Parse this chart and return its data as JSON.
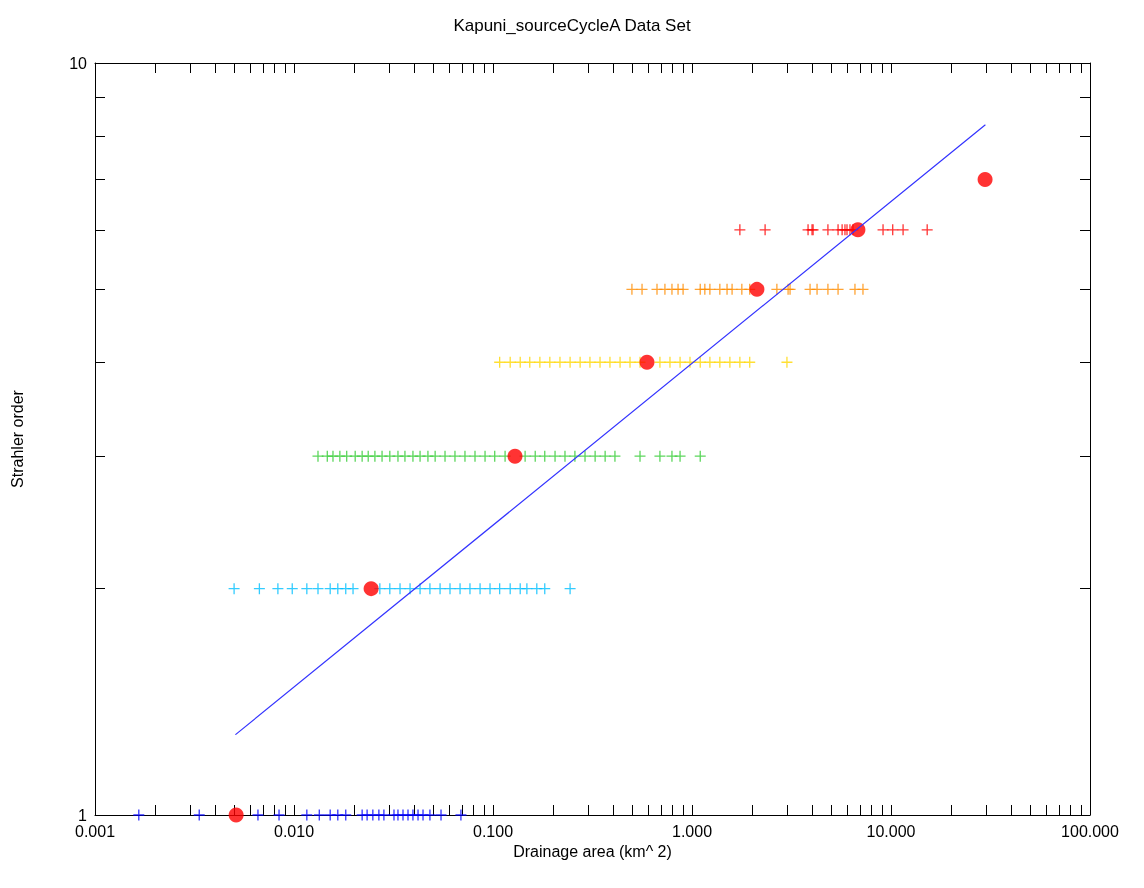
{
  "chart_data": {
    "type": "scatter",
    "title": "Kapuni_sourceCycleA Data Set",
    "xlabel": "Drainage area (km^ 2)",
    "ylabel": "Strahler order",
    "log": "xy",
    "marker": "cross",
    "grid": false,
    "xlim": [
      0.001,
      100
    ],
    "ylim": [
      1,
      10
    ],
    "xticks": [
      {
        "value": 0.001,
        "label": "0.001"
      },
      {
        "value": 0.002,
        "label": null
      },
      {
        "value": 0.003,
        "label": null
      },
      {
        "value": 0.004,
        "label": null
      },
      {
        "value": 0.005,
        "label": null
      },
      {
        "value": 0.006,
        "label": null
      },
      {
        "value": 0.007,
        "label": null
      },
      {
        "value": 0.008,
        "label": null
      },
      {
        "value": 0.009,
        "label": null
      },
      {
        "value": 0.01,
        "label": "0.010"
      },
      {
        "value": 0.02,
        "label": null
      },
      {
        "value": 0.03,
        "label": null
      },
      {
        "value": 0.04,
        "label": null
      },
      {
        "value": 0.05,
        "label": null
      },
      {
        "value": 0.06,
        "label": null
      },
      {
        "value": 0.07,
        "label": null
      },
      {
        "value": 0.08,
        "label": null
      },
      {
        "value": 0.09,
        "label": null
      },
      {
        "value": 0.1,
        "label": "0.100"
      },
      {
        "value": 0.2,
        "label": null
      },
      {
        "value": 0.3,
        "label": null
      },
      {
        "value": 0.4,
        "label": null
      },
      {
        "value": 0.5,
        "label": null
      },
      {
        "value": 0.6,
        "label": null
      },
      {
        "value": 0.7,
        "label": null
      },
      {
        "value": 0.8,
        "label": null
      },
      {
        "value": 0.9,
        "label": null
      },
      {
        "value": 1,
        "label": "1.000"
      },
      {
        "value": 2,
        "label": null
      },
      {
        "value": 3,
        "label": null
      },
      {
        "value": 4,
        "label": null
      },
      {
        "value": 5,
        "label": null
      },
      {
        "value": 6,
        "label": null
      },
      {
        "value": 7,
        "label": null
      },
      {
        "value": 8,
        "label": null
      },
      {
        "value": 9,
        "label": null
      },
      {
        "value": 10,
        "label": "10.000"
      },
      {
        "value": 20,
        "label": null
      },
      {
        "value": 30,
        "label": null
      },
      {
        "value": 40,
        "label": null
      },
      {
        "value": 50,
        "label": null
      },
      {
        "value": 60,
        "label": null
      },
      {
        "value": 70,
        "label": null
      },
      {
        "value": 80,
        "label": null
      },
      {
        "value": 90,
        "label": null
      },
      {
        "value": 100,
        "label": "100.000"
      }
    ],
    "yticks": [
      1,
      {
        "value": 2,
        "label": null
      },
      {
        "value": 3,
        "label": null
      },
      {
        "value": 4,
        "label": null
      },
      {
        "value": 5,
        "label": null
      },
      {
        "value": 6,
        "label": null
      },
      {
        "value": 7,
        "label": null
      },
      {
        "value": 8,
        "label": null
      },
      {
        "value": 9,
        "label": null
      },
      10
    ],
    "series": [
      {
        "color": "#0000ff",
        "x": [
          0.00166,
          0.00334,
          0.00659,
          0.00841,
          0.0116,
          0.0134,
          0.0152,
          0.0166,
          0.0182,
          0.022,
          0.0233,
          0.0249,
          0.0267,
          0.0283,
          0.0318,
          0.0333,
          0.0353,
          0.0374,
          0.0396,
          0.042,
          0.0445,
          0.0482,
          0.0548,
          0.069
        ],
        "values": [
          1,
          1,
          1,
          1,
          1,
          1,
          1,
          1,
          1,
          1,
          1,
          1,
          1,
          1,
          1,
          1,
          1,
          1,
          1,
          1,
          1,
          1,
          1,
          1
        ]
      },
      {
        "color": "#00bfff",
        "x": [
          0.005,
          0.0067,
          0.0083,
          0.0098,
          0.0116,
          0.0132,
          0.0152,
          0.0166,
          0.0182,
          0.0198,
          0.027,
          0.0303,
          0.0341,
          0.0383,
          0.043,
          0.0482,
          0.0542,
          0.0608,
          0.0683,
          0.0766,
          0.0861,
          0.0966,
          0.108,
          0.122,
          0.137,
          0.148,
          0.166,
          0.182,
          0.244
        ],
        "values": [
          2,
          2,
          2,
          2,
          2,
          2,
          2,
          2,
          2,
          2,
          2,
          2,
          2,
          2,
          2,
          2,
          2,
          2,
          2,
          2,
          2,
          2,
          2,
          2,
          2,
          2,
          2,
          2,
          2
        ]
      },
      {
        "color": "#33cc33",
        "x": [
          0.0132,
          0.0147,
          0.0157,
          0.017,
          0.0184,
          0.0203,
          0.022,
          0.0236,
          0.0255,
          0.0277,
          0.0303,
          0.0333,
          0.0361,
          0.0396,
          0.043,
          0.0471,
          0.0512,
          0.0574,
          0.0644,
          0.0723,
          0.0812,
          0.0912,
          0.102,
          0.115,
          0.129,
          0.145,
          0.163,
          0.182,
          0.205,
          0.23,
          0.258,
          0.29,
          0.326,
          0.366,
          0.41,
          0.548,
          0.69,
          0.793,
          0.871,
          1.1
        ],
        "values": [
          3,
          3,
          3,
          3,
          3,
          3,
          3,
          3,
          3,
          3,
          3,
          3,
          3,
          3,
          3,
          3,
          3,
          3,
          3,
          3,
          3,
          3,
          3,
          3,
          null,
          3,
          3,
          3,
          3,
          3,
          3,
          3,
          3,
          3,
          3,
          3,
          3,
          3,
          3,
          3
        ]
      },
      {
        "color": "#ffd700",
        "x": [
          0.108,
          0.122,
          0.137,
          0.153,
          0.172,
          0.193,
          0.217,
          0.244,
          0.274,
          0.307,
          0.345,
          0.387,
          0.435,
          0.488,
          0.548,
          0.615,
          0.69,
          0.775,
          0.871,
          0.977,
          1.1,
          1.23,
          1.38,
          1.55,
          1.74,
          1.95,
          3.0
        ],
        "values": [
          4,
          4,
          4,
          4,
          4,
          4,
          4,
          4,
          4,
          4,
          4,
          4,
          4,
          4,
          4,
          null,
          4,
          4,
          4,
          4,
          4,
          4,
          4,
          4,
          4,
          4,
          4
        ]
      },
      {
        "color": "#ff8c00",
        "x": [
          0.499,
          0.561,
          0.667,
          0.731,
          0.793,
          0.851,
          0.902,
          1.1,
          1.16,
          1.23,
          1.38,
          1.5,
          1.59,
          1.78,
          1.95,
          2.67,
          3.04,
          3.11,
          3.92,
          4.25,
          4.82,
          5.42,
          6.59,
          7.23
        ],
        "values": [
          5,
          5,
          5,
          5,
          5,
          5,
          5,
          5,
          5,
          5,
          5,
          5,
          5,
          5,
          5,
          5,
          5,
          5,
          5,
          5,
          5,
          5,
          5,
          5
        ]
      },
      {
        "color": "#ff0000",
        "x": [
          1.74,
          2.33,
          3.83,
          4.01,
          4.06,
          4.82,
          5.42,
          5.68,
          5.87,
          6.01,
          6.22,
          6.44,
          9.12,
          10.2,
          11.5,
          15.2
        ],
        "values": [
          6,
          6,
          6,
          6,
          6,
          6,
          6,
          6,
          6,
          6,
          6,
          6,
          6,
          6,
          6,
          6
        ]
      },
      {
        "type": "line",
        "marker": "none",
        "color": "#3333ff",
        "x": [
          0.0051,
          29.7
        ],
        "values": [
          1.28,
          8.27
        ]
      },
      {
        "marker": "circle",
        "color": "#ff0000",
        "x": [
          0.00512,
          0.0244,
          0.129,
          0.594,
          2.12,
          6.82,
          29.7
        ],
        "values": [
          1,
          2,
          3,
          4,
          5,
          6,
          7
        ]
      }
    ]
  }
}
